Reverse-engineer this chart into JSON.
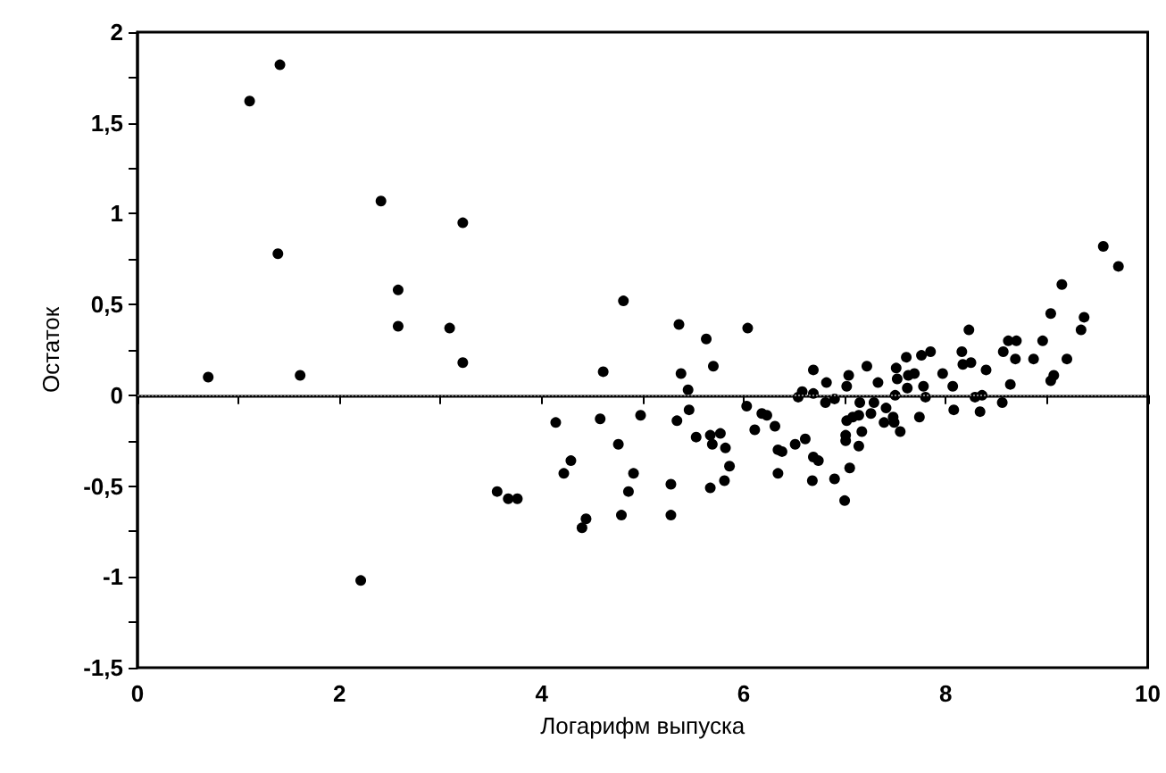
{
  "chart_data": {
    "type": "scatter",
    "xlabel": "Логарифм выпуска",
    "ylabel": "Остаток",
    "marker": "circle",
    "grid": false,
    "xlim": [
      0,
      10
    ],
    "ylim": [
      -1.5,
      2
    ],
    "xticks": [
      0,
      {
        "value": 1,
        "label": null
      },
      2,
      {
        "value": 3,
        "label": null
      },
      4,
      {
        "value": 5,
        "label": null
      },
      6,
      {
        "value": 7,
        "label": null
      },
      8,
      {
        "value": 9,
        "label": null
      },
      10
    ],
    "yticks": [
      {
        "value": -1.5,
        "label": "-1,5"
      },
      {
        "value": -1.25,
        "label": null
      },
      -1,
      {
        "value": -0.75,
        "label": null
      },
      {
        "value": -0.5,
        "label": "-0,5"
      },
      {
        "value": -0.25,
        "label": null
      },
      0,
      {
        "value": 0.25,
        "label": null
      },
      {
        "value": 0.5,
        "label": "0,5"
      },
      {
        "value": 0.75,
        "label": null
      },
      1,
      {
        "value": 1.25,
        "label": null
      },
      {
        "value": 1.5,
        "label": "1,5"
      },
      {
        "value": 1.75,
        "label": null
      },
      2
    ],
    "ref_lines": [
      {
        "axis": "y",
        "value": 0,
        "color": "#808080",
        "line_style": "dotted"
      }
    ],
    "series": [
      {
        "color": "#000000",
        "x": [
          0.7,
          1.11,
          1.41,
          1.39,
          1.61,
          2.41,
          3.22,
          2.58,
          2.58,
          3.09,
          3.22,
          4.81,
          4.61,
          2.21,
          3.56,
          3.67,
          3.76,
          4.14,
          4.22,
          4.29,
          4.4,
          4.44,
          4.58,
          4.76,
          4.91,
          4.86,
          4.79,
          4.98,
          5.36,
          5.38,
          5.45,
          5.46,
          5.34,
          5.28,
          5.28,
          5.53,
          5.63,
          5.7,
          5.67,
          5.69,
          5.77,
          5.82,
          5.86,
          5.81,
          5.67,
          6.04,
          6.03,
          6.18,
          6.23,
          6.11,
          6.31,
          6.34,
          6.38,
          6.34,
          6.51,
          6.61,
          6.54,
          6.58,
          6.69,
          6.69,
          6.82,
          6.81,
          6.9,
          6.69,
          6.74,
          6.68,
          6.9,
          7.0,
          7.05,
          7.04,
          7.02,
          7.22,
          7.33,
          7.15,
          7.02,
          7.08,
          7.14,
          7.01,
          7.01,
          7.14,
          7.17,
          7.26,
          7.29,
          7.41,
          7.39,
          7.48,
          7.49,
          7.55,
          7.5,
          7.51,
          7.52,
          7.61,
          7.63,
          7.69,
          7.62,
          7.76,
          7.85,
          7.78,
          7.8,
          7.74,
          7.97,
          8.07,
          8.08,
          8.16,
          8.23,
          8.17,
          8.25,
          8.4,
          8.29,
          8.34,
          8.36,
          8.56,
          8.57,
          8.62,
          8.7,
          8.69,
          8.64,
          8.87,
          8.96,
          9.04,
          9.07,
          9.2,
          9.04,
          9.15,
          9.34,
          9.37,
          9.56,
          9.71
        ],
        "values": [
          0.1,
          1.62,
          1.82,
          0.78,
          0.11,
          1.07,
          0.95,
          0.58,
          0.38,
          0.37,
          0.18,
          0.52,
          0.13,
          -1.02,
          -0.53,
          -0.57,
          -0.57,
          -0.15,
          -0.43,
          -0.36,
          -0.73,
          -0.68,
          -0.13,
          -0.27,
          -0.43,
          -0.53,
          -0.66,
          -0.11,
          0.39,
          0.12,
          0.03,
          -0.08,
          -0.14,
          -0.49,
          -0.66,
          -0.23,
          0.31,
          0.16,
          -0.22,
          -0.27,
          -0.21,
          -0.29,
          -0.39,
          -0.47,
          -0.51,
          0.37,
          -0.06,
          -0.1,
          -0.11,
          -0.19,
          -0.17,
          -0.3,
          -0.31,
          -0.43,
          -0.27,
          -0.24,
          -0.01,
          0.02,
          0.01,
          0.14,
          0.07,
          -0.04,
          -0.02,
          -0.34,
          -0.36,
          -0.47,
          -0.46,
          -0.58,
          -0.4,
          0.11,
          0.05,
          0.16,
          0.07,
          -0.04,
          -0.14,
          -0.12,
          -0.11,
          -0.22,
          -0.25,
          -0.28,
          -0.2,
          -0.1,
          -0.04,
          -0.07,
          -0.15,
          -0.12,
          -0.15,
          -0.2,
          0.0,
          0.15,
          0.09,
          0.21,
          0.11,
          0.12,
          0.04,
          0.22,
          0.24,
          0.05,
          -0.01,
          -0.12,
          0.12,
          0.05,
          -0.08,
          0.24,
          0.36,
          0.17,
          0.18,
          0.14,
          -0.01,
          -0.09,
          0.0,
          -0.04,
          0.24,
          0.3,
          0.3,
          0.2,
          0.06,
          0.2,
          0.3,
          0.08,
          0.11,
          0.2,
          0.45,
          0.61,
          0.36,
          0.43,
          0.82,
          0.71
        ]
      }
    ]
  }
}
